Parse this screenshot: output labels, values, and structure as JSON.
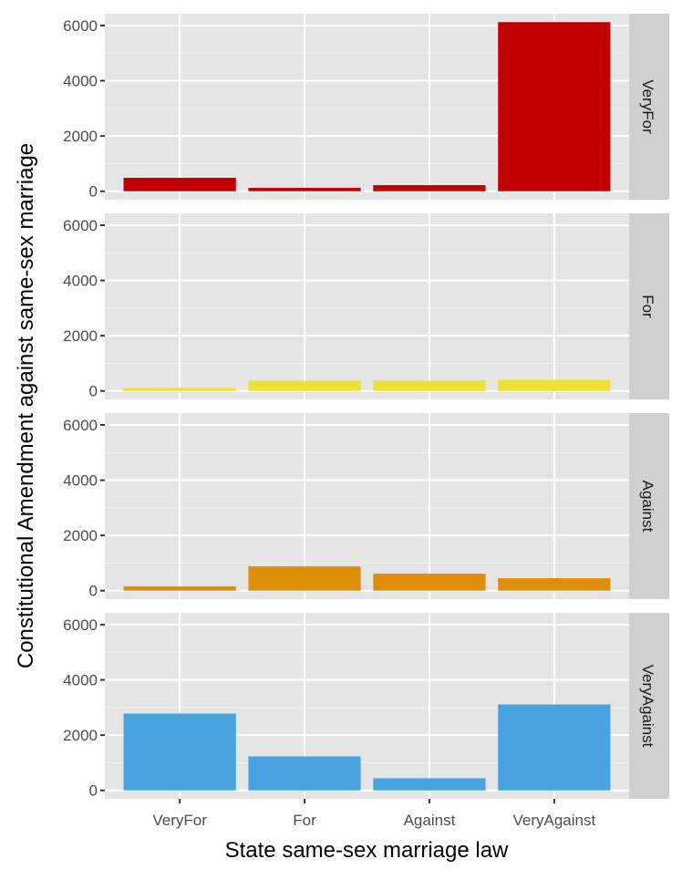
{
  "chart_data": {
    "type": "bar",
    "layout": "faceted-rows",
    "xlabel": "State same-sex marriage law",
    "ylabel": "Constitutional Amendment against same-sex marriage",
    "categories": [
      "VeryFor",
      "For",
      "Against",
      "VeryAgainst"
    ],
    "ylim": [
      0,
      6000
    ],
    "yticks": [
      0,
      2000,
      4000,
      6000
    ],
    "grid": true,
    "legend": "none",
    "facets": [
      {
        "name": "VeryFor",
        "color": "#C00000",
        "values": [
          485,
          122,
          221,
          6122
        ]
      },
      {
        "name": "For",
        "color": "#EDE133",
        "values": [
          110,
          373,
          373,
          406
        ]
      },
      {
        "name": "Against",
        "color": "#DF8E0A",
        "values": [
          155,
          880,
          616,
          451
        ]
      },
      {
        "name": "VeryAgainst",
        "color": "#48A4E1",
        "values": [
          2780,
          1230,
          440,
          3110
        ]
      }
    ]
  }
}
